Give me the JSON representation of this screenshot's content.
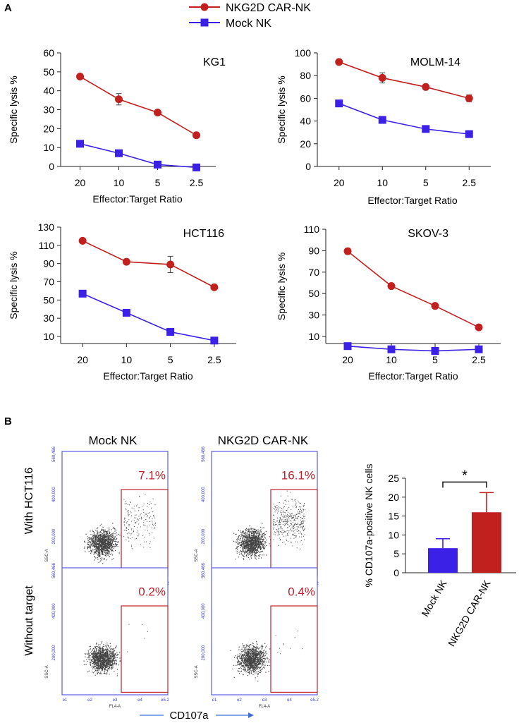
{
  "panel_labels": {
    "a": "A",
    "b": "B"
  },
  "legend": [
    {
      "name": "NKG2D CAR-NK",
      "color": "#c0201e",
      "marker": "circle"
    },
    {
      "name": "Mock NK",
      "color": "#3b20e6",
      "marker": "square"
    }
  ],
  "colors": {
    "car": "#c0201e",
    "mock": "#3b20e6",
    "gate": "#c0202a",
    "flow_axis": "#3a3ae0",
    "arrow": "#3f6fd6",
    "dots": "#222222"
  },
  "flow": {
    "col_titles": [
      "Mock NK",
      "NKG2D CAR-NK"
    ],
    "row_titles": [
      "With HCT116",
      "Without target"
    ],
    "y_axis_label": "SSC-A",
    "x_axis_label": "FL4-A",
    "y_ticks": [
      "200,000",
      "400,000",
      "560,466"
    ],
    "x_ticks": [
      "e1",
      "e2",
      "e3",
      "e4",
      "e5.2"
    ],
    "bottom_label": "CD107a",
    "plots": [
      {
        "row": 0,
        "col": 0,
        "percent": "7.1%",
        "positive_fraction": 0.071
      },
      {
        "row": 0,
        "col": 1,
        "percent": "16.1%",
        "positive_fraction": 0.161
      },
      {
        "row": 1,
        "col": 0,
        "percent": "0.2%",
        "positive_fraction": 0.002
      },
      {
        "row": 1,
        "col": 1,
        "percent": "0.4%",
        "positive_fraction": 0.004
      }
    ]
  },
  "chart_data": [
    {
      "type": "line",
      "title": "KG1",
      "xlabel": "Effector:Target Ratio",
      "ylabel": "Specific lysis %",
      "categories": [
        "20",
        "10",
        "5",
        "2.5"
      ],
      "ylim": [
        0,
        60
      ],
      "yticks": [
        0,
        10,
        20,
        30,
        40,
        50,
        60
      ],
      "series": [
        {
          "name": "NKG2D CAR-NK",
          "values": [
            47.5,
            35.5,
            28.5,
            16.5
          ],
          "errors": [
            0.8,
            3.0,
            0.8,
            0.8
          ]
        },
        {
          "name": "Mock NK",
          "values": [
            12,
            7,
            1,
            -0.5
          ],
          "errors": [
            0,
            0,
            0,
            0
          ]
        }
      ]
    },
    {
      "type": "line",
      "title": "MOLM-14",
      "xlabel": "Effector:Target Ratio",
      "ylabel": "Specific lysis %",
      "categories": [
        "20",
        "10",
        "5",
        "2.5"
      ],
      "ylim": [
        0,
        100
      ],
      "yticks": [
        0,
        20,
        40,
        60,
        80,
        100
      ],
      "series": [
        {
          "name": "NKG2D CAR-NK",
          "values": [
            92,
            78,
            70,
            60
          ],
          "errors": [
            1.2,
            4.5,
            1.2,
            3.0
          ]
        },
        {
          "name": "Mock NK",
          "values": [
            55.5,
            41,
            33,
            28.5
          ],
          "errors": [
            0,
            0,
            0,
            0
          ]
        }
      ]
    },
    {
      "type": "line",
      "title": "HCT116",
      "xlabel": "Effector:Target Ratio",
      "ylabel": "Specific lysis %",
      "categories": [
        "20",
        "10",
        "5",
        "2.5"
      ],
      "ylim": [
        0,
        130
      ],
      "yticks": [
        10,
        30,
        50,
        70,
        90,
        110,
        130
      ],
      "series": [
        {
          "name": "NKG2D CAR-NK",
          "values": [
            115,
            92,
            89,
            64
          ],
          "errors": [
            1.5,
            1.5,
            9,
            1.5
          ]
        },
        {
          "name": "Mock NK",
          "values": [
            57,
            36,
            15,
            5.5
          ],
          "errors": [
            0,
            0,
            0,
            0
          ]
        }
      ]
    },
    {
      "type": "line",
      "title": "SKOV-3",
      "xlabel": "Effector:Target Ratio",
      "ylabel": "Specific lysis %",
      "categories": [
        "20",
        "10",
        "5",
        "2.5"
      ],
      "ylim": [
        0,
        110
      ],
      "yticks": [
        10,
        30,
        50,
        70,
        90,
        110
      ],
      "series": [
        {
          "name": "NKG2D CAR-NK",
          "values": [
            89.5,
            57,
            38.5,
            18.5
          ],
          "errors": [
            2.5,
            1,
            1,
            1
          ]
        },
        {
          "name": "Mock NK",
          "values": [
            1,
            -2,
            -3.5,
            -2
          ],
          "errors": [
            0,
            0,
            0,
            0
          ]
        }
      ]
    },
    {
      "type": "bar",
      "title": "",
      "xlabel": "",
      "ylabel": "% CD107a-positive NK cells",
      "categories": [
        "Mock NK",
        "NKG2D CAR-NK"
      ],
      "values": [
        6.5,
        16
      ],
      "errors": [
        2.5,
        5.2
      ],
      "ylim": [
        0,
        25
      ],
      "yticks": [
        0,
        5,
        10,
        15,
        20,
        25
      ],
      "significance": "*"
    }
  ]
}
